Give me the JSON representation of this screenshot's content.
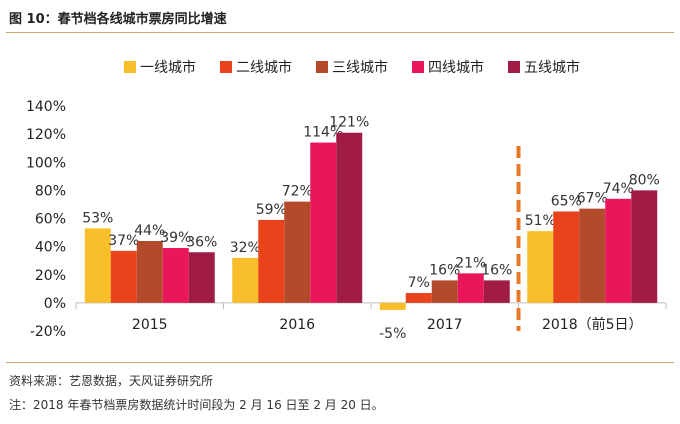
{
  "figure": {
    "title": "图 10：春节档各线城市票房同比增速",
    "source": "资料来源：艺恩数据，天风证券研究所",
    "note": "注：2018 年春节档票房数据统计时间段为 2 月 16 日至 2 月 20 日。"
  },
  "chart_data": {
    "type": "bar",
    "title": "春节档各线城市票房同比增速",
    "categories": [
      "2015",
      "2016",
      "2017",
      "2018（前5日）"
    ],
    "series": [
      {
        "name": "一线城市",
        "color": "#f8bf2a",
        "values": [
          53,
          32,
          -5,
          51
        ],
        "labels": [
          "53%",
          "32%",
          "-5%",
          "51%"
        ]
      },
      {
        "name": "二线城市",
        "color": "#e8431b",
        "values": [
          37,
          59,
          7,
          65
        ],
        "labels": [
          "37%",
          "59%",
          "7%",
          "65%"
        ]
      },
      {
        "name": "三线城市",
        "color": "#b44a2c",
        "values": [
          44,
          72,
          16,
          67
        ],
        "labels": [
          "44%",
          "72%",
          "16%",
          "67%"
        ]
      },
      {
        "name": "四线城市",
        "color": "#e9175a",
        "values": [
          39,
          114,
          21,
          74
        ],
        "labels": [
          "39%",
          "114%",
          "21%",
          "74%"
        ]
      },
      {
        "name": "五线城市",
        "color": "#a11c45",
        "values": [
          36,
          121,
          16,
          80
        ],
        "labels": [
          "36%",
          "121%",
          "16%",
          "80%"
        ]
      }
    ],
    "ylim": [
      -20,
      140
    ],
    "yticks": [
      -20,
      0,
      20,
      40,
      60,
      80,
      100,
      120,
      140
    ],
    "ytick_labels": [
      "-20%",
      "0%",
      "20%",
      "40%",
      "60%",
      "80%",
      "100%",
      "120%",
      "140%"
    ],
    "separator": {
      "between_categories": [
        2,
        3
      ],
      "color": "#e8782a",
      "style": "dashed"
    },
    "legend_position": "top-center",
    "grid": false
  }
}
